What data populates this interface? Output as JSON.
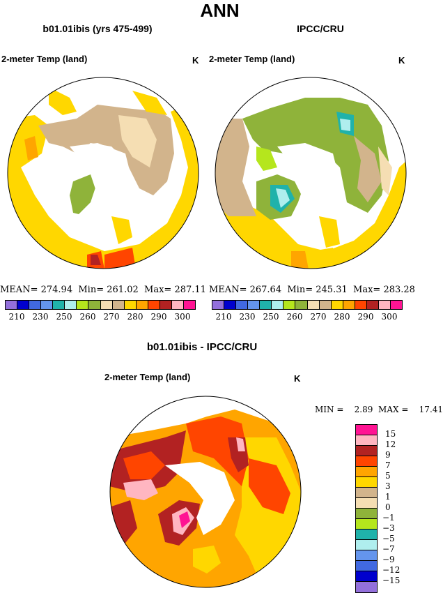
{
  "page_title": "ANN",
  "panels": [
    {
      "heading": "b01.01ibis (yrs 475-499)",
      "subtitle": "2-meter Temp (land)",
      "units": "K",
      "stats": {
        "mean_label": "MEAN=",
        "mean": "274.94",
        "min_label": "Min=",
        "min": "261.02",
        "max_label": "Max=",
        "max": "287.11"
      }
    },
    {
      "heading": "IPCC/CRU",
      "subtitle": "2-meter Temp (land)",
      "units": "K",
      "stats": {
        "mean_label": "MEAN=",
        "mean": "267.64",
        "min_label": "Min=",
        "min": "245.31",
        "max_label": "Max=",
        "max": "283.28"
      }
    }
  ],
  "abs_colorbar": {
    "colors": [
      "#9370db",
      "#0000cd",
      "#4169e1",
      "#6495ed",
      "#20b2aa",
      "#afeeee",
      "#b5e61d",
      "#8fb33a",
      "#f5deb3",
      "#d2b48c",
      "#ffd700",
      "#ffa500",
      "#ff4500",
      "#b22222",
      "#ffb6c1",
      "#ff1493"
    ],
    "tick_labels": [
      "210",
      "230",
      "250",
      "260",
      "270",
      "280",
      "290",
      "300"
    ]
  },
  "diff": {
    "heading": "b01.01ibis - IPCC/CRU",
    "subtitle": "2-meter Temp (land)",
    "units": "K",
    "min_label": "MIN =",
    "min": "2.89",
    "max_label": "MAX =",
    "max": "17.41",
    "colorbar": {
      "colors_top_to_bottom": [
        "#ff1493",
        "#ffb6c1",
        "#b22222",
        "#ff4500",
        "#ffa500",
        "#ffd700",
        "#d2b48c",
        "#f5deb3",
        "#8fb33a",
        "#b5e61d",
        "#20b2aa",
        "#afeeee",
        "#6495ed",
        "#4169e1",
        "#0000cd",
        "#9370db"
      ],
      "tick_labels_top_to_bottom": [
        "15",
        "12",
        "9",
        "7",
        "5",
        "3",
        "1",
        "0",
        "−1",
        "−3",
        "−5",
        "−7",
        "−9",
        "−12",
        "−15"
      ]
    }
  }
}
